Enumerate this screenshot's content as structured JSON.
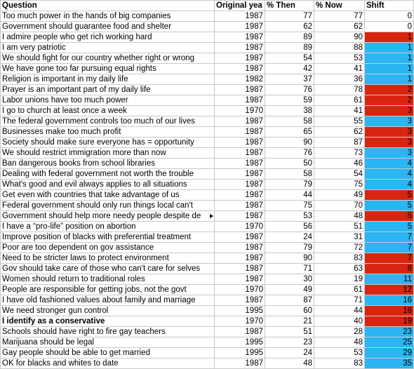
{
  "headers": {
    "question": "Question",
    "original_year": "Original yea",
    "pct_then": "% Then",
    "pct_now": "% Now",
    "shift": "Shift"
  },
  "colors": {
    "red": "#d9250f",
    "blue": "#29b6f2"
  },
  "rows": [
    {
      "question": "Too much power in the hands of big companies",
      "year": "1987",
      "then": "77",
      "now": "77",
      "shift": "0",
      "fill": "none"
    },
    {
      "question": "Government should guarantee food and shelter",
      "year": "1987",
      "then": "62",
      "now": "62",
      "shift": "0",
      "fill": "none"
    },
    {
      "question": "I admire people who get rich working hard",
      "year": "1987",
      "then": "89",
      "now": "90",
      "shift": "1",
      "fill": "red"
    },
    {
      "question": "I am very patriotic",
      "year": "1987",
      "then": "89",
      "now": "88",
      "shift": "1",
      "fill": "blue"
    },
    {
      "question": "We should fight for our country whether right or wrong",
      "year": "1987",
      "then": "54",
      "now": "53",
      "shift": "1",
      "fill": "blue"
    },
    {
      "question": "We have gone too far pursuing equal rights",
      "year": "1987",
      "then": "42",
      "now": "41",
      "shift": "1",
      "fill": "blue"
    },
    {
      "question": "Religion is important in my daily life",
      "year": "1982",
      "then": "37",
      "now": "36",
      "shift": "1",
      "fill": "blue"
    },
    {
      "question": "Prayer is an important part of my daily life",
      "year": "1987",
      "then": "76",
      "now": "78",
      "shift": "2",
      "fill": "red"
    },
    {
      "question": "Labor unions have too much power",
      "year": "1987",
      "then": "59",
      "now": "61",
      "shift": "2",
      "fill": "red"
    },
    {
      "question": "I go to church at least once a week",
      "year": "1970",
      "then": "38",
      "now": "41",
      "shift": "3",
      "fill": "red"
    },
    {
      "question": "The federal government controls too much of our lives",
      "year": "1987",
      "then": "58",
      "now": "55",
      "shift": "3",
      "fill": "blue"
    },
    {
      "question": "Businesses make too much profit",
      "year": "1987",
      "then": "65",
      "now": "62",
      "shift": "3",
      "fill": "red"
    },
    {
      "question": "Society should make sure everyone has = opportunity",
      "year": "1987",
      "then": "90",
      "now": "87",
      "shift": "3",
      "fill": "red"
    },
    {
      "question": "We should restrict immigration more than now",
      "year": "1987",
      "then": "76",
      "now": "73",
      "shift": "3",
      "fill": "blue"
    },
    {
      "question": "Ban dangerous books from school libraries",
      "year": "1987",
      "then": "50",
      "now": "46",
      "shift": "4",
      "fill": "blue"
    },
    {
      "question": "Dealing with federal government not worth the trouble",
      "year": "1987",
      "then": "58",
      "now": "54",
      "shift": "4",
      "fill": "blue"
    },
    {
      "question": "What's good and evil always applies to all situations",
      "year": "1987",
      "then": "79",
      "now": "75",
      "shift": "4",
      "fill": "blue"
    },
    {
      "question": "Get even with countries that take advantage of us",
      "year": "1987",
      "then": "44",
      "now": "49",
      "shift": "5",
      "fill": "red"
    },
    {
      "question": "Federal government should only run things local can't",
      "year": "1987",
      "then": "75",
      "now": "70",
      "shift": "5",
      "fill": "blue"
    },
    {
      "question": "Government should help more needy people despite de",
      "year": "1987",
      "then": "53",
      "now": "48",
      "shift": "5",
      "fill": "red",
      "truncated": true
    },
    {
      "question": "I have a “pro-life” position on abortion",
      "year": "1970",
      "then": "56",
      "now": "51",
      "shift": "5",
      "fill": "blue"
    },
    {
      "question": "Improve position of blacks with preferential treatment",
      "year": "1987",
      "then": "24",
      "now": "31",
      "shift": "7",
      "fill": "blue"
    },
    {
      "question": "Poor are too dependent on gov assistance",
      "year": "1987",
      "then": "79",
      "now": "72",
      "shift": "7",
      "fill": "blue"
    },
    {
      "question": "Need to be stricter laws to protect environment",
      "year": "1987",
      "then": "90",
      "now": "83",
      "shift": "7",
      "fill": "red"
    },
    {
      "question": "Gov should take care of those who can't care for selves",
      "year": "1987",
      "then": "71",
      "now": "63",
      "shift": "8",
      "fill": "red"
    },
    {
      "question": "Women should return to traditional roles",
      "year": "1987",
      "then": "30",
      "now": "19",
      "shift": "11",
      "fill": "blue"
    },
    {
      "question": "People are responsible for getting jobs, not the govt",
      "year": "1970",
      "then": "49",
      "now": "61",
      "shift": "12",
      "fill": "red"
    },
    {
      "question": "I have old fashioned values about family and marriage",
      "year": "1987",
      "then": "87",
      "now": "71",
      "shift": "16",
      "fill": "blue"
    },
    {
      "question": "We need stronger gun control",
      "year": "1995",
      "then": "60",
      "now": "44",
      "shift": "16",
      "fill": "red"
    },
    {
      "question": "I identify as a conservative",
      "year": "1970",
      "then": "21",
      "now": "40",
      "shift": "19",
      "fill": "red",
      "bold": true
    },
    {
      "question": "Schools should have right to fire gay teachers",
      "year": "1987",
      "then": "51",
      "now": "28",
      "shift": "23",
      "fill": "blue"
    },
    {
      "question": "Marijuana should be legal",
      "year": "1995",
      "then": "23",
      "now": "48",
      "shift": "25",
      "fill": "blue"
    },
    {
      "question": "Gay people should be able to get married",
      "year": "1995",
      "then": "24",
      "now": "53",
      "shift": "29",
      "fill": "blue"
    },
    {
      "question": "OK for blacks and whites to date",
      "year": "1987",
      "then": "48",
      "now": "83",
      "shift": "35",
      "fill": "blue"
    }
  ]
}
